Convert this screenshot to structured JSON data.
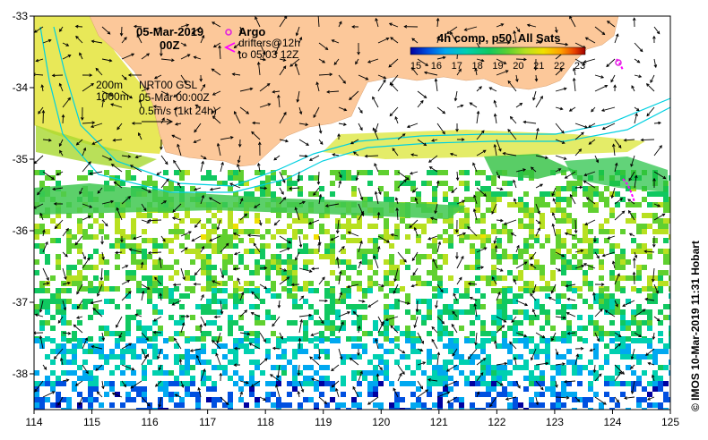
{
  "map": {
    "date_label": "05-Mar-2019",
    "time_label": "00Z",
    "argo_label": "Argo",
    "drifters_label": "drifters@12h",
    "drifters_range": "to 05/03 12Z",
    "isobath_200": "200m",
    "isobath_1000": "1000m",
    "product_label": "NRT00 GSL",
    "product_time": "05-Mar 00:00Z",
    "scale_label": "0.5m/s (1kt 24h)",
    "colorbar_title": "4h comp, p50, All Sats",
    "colorbar_ticks": [
      "15",
      "16",
      "17",
      "18",
      "19",
      "20",
      "21",
      "22",
      "23"
    ],
    "credit": "© IMOS 10-Mar-2019 11:31 Hobart",
    "lon_ticks": [
      "114",
      "115",
      "116",
      "117",
      "118",
      "119",
      "120",
      "121",
      "122",
      "123",
      "124",
      "125"
    ],
    "lat_ticks": [
      "-33",
      "-34",
      "-35",
      "-36",
      "-37",
      "-38"
    ],
    "lon_range": [
      114,
      125
    ],
    "lat_range": [
      -38.5,
      -33
    ],
    "colors": {
      "land": "#fcc89a",
      "argo": "#e020e0",
      "drifter": "#ff00ff",
      "isobath": "#00d0e0",
      "colorbar": [
        "#0000a0",
        "#0050e0",
        "#00a8f0",
        "#00d0b0",
        "#10c860",
        "#60d030",
        "#b8e020",
        "#f0e000",
        "#ffa000",
        "#e84000",
        "#a00000"
      ]
    },
    "sst_bands": [
      {
        "lat_min": -35.6,
        "lat_max": -35.15,
        "sst": 19.0
      },
      {
        "lat_min": -36.1,
        "lat_max": -35.6,
        "sst": 19.8
      },
      {
        "lat_min": -36.8,
        "lat_max": -36.1,
        "sst": 19.3
      },
      {
        "lat_min": -37.5,
        "lat_max": -36.8,
        "sst": 18.3
      },
      {
        "lat_min": -38.1,
        "lat_max": -37.5,
        "sst": 17.2
      },
      {
        "lat_min": -38.5,
        "lat_max": -38.1,
        "sst": 16.0
      }
    ]
  }
}
